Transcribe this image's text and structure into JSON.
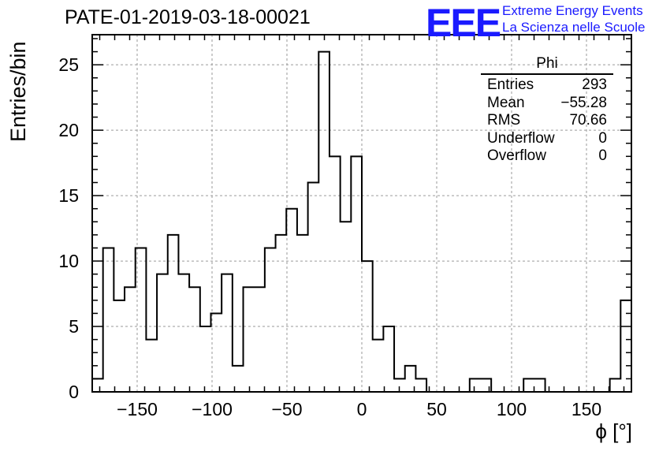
{
  "title": "PATE-01-2019-03-18-00021",
  "logo": {
    "mark": "EEE",
    "line1": "Extreme Energy Events",
    "line2": "La Scienza nelle Scuole",
    "color": "#1a1aff"
  },
  "stats_box": {
    "title": "Phi",
    "rows": [
      {
        "label": "Entries",
        "value": "293"
      },
      {
        "label": "Mean",
        "value": "−55.28"
      },
      {
        "label": "RMS",
        "value": "70.66"
      },
      {
        "label": "Underflow",
        "value": "0"
      },
      {
        "label": "Overflow",
        "value": "0"
      }
    ]
  },
  "chart_data": {
    "type": "bar",
    "style": "step-histogram",
    "title": "PATE-01-2019-03-18-00021",
    "xlabel": "ϕ [°]",
    "ylabel": "Entries/bin",
    "xlim": [
      -180,
      180
    ],
    "ylim": [
      0,
      27.3
    ],
    "bin_edges_start": -180,
    "bin_width": 7.2,
    "values": [
      1,
      11,
      7,
      8,
      11,
      4,
      9,
      12,
      9,
      8,
      5,
      6,
      9,
      2,
      8,
      8,
      11,
      12,
      14,
      12,
      16,
      26,
      18,
      13,
      18,
      10,
      4,
      5,
      1,
      2,
      1,
      0,
      0,
      0,
      0,
      1,
      1,
      0,
      0,
      0,
      1,
      1,
      0,
      0,
      0,
      0,
      0,
      0,
      1,
      7
    ],
    "x_ticks": [
      -150,
      -100,
      -50,
      0,
      50,
      100,
      150
    ],
    "x_tick_labels": [
      "−150",
      "−100",
      "−50",
      "0",
      "50",
      "100",
      "150"
    ],
    "y_ticks": [
      0,
      5,
      10,
      15,
      20,
      25
    ],
    "y_tick_labels": [
      "0",
      "5",
      "10",
      "15",
      "20",
      "25"
    ],
    "grid": true
  }
}
